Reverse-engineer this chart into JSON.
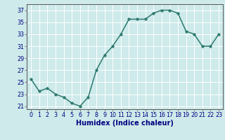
{
  "x": [
    0,
    1,
    2,
    3,
    4,
    5,
    6,
    7,
    8,
    9,
    10,
    11,
    12,
    13,
    14,
    15,
    16,
    17,
    18,
    19,
    20,
    21,
    22,
    23
  ],
  "y": [
    25.5,
    23.5,
    24.0,
    23.0,
    22.5,
    21.5,
    21.0,
    22.5,
    27.0,
    29.5,
    31.0,
    33.0,
    35.5,
    35.5,
    35.5,
    36.5,
    37.0,
    37.0,
    36.5,
    33.5,
    33.0,
    31.0,
    31.0,
    33.0
  ],
  "line_color": "#2d7a6e",
  "marker_color": "#2d7a6e",
  "bg_color": "#ceeaea",
  "grid_color": "#ffffff",
  "xlabel": "Humidex (Indice chaleur)",
  "xlim": [
    -0.5,
    23.5
  ],
  "ylim": [
    20.5,
    38.0
  ],
  "yticks": [
    21,
    23,
    25,
    27,
    29,
    31,
    33,
    35,
    37
  ],
  "xticks": [
    0,
    1,
    2,
    3,
    4,
    5,
    6,
    7,
    8,
    9,
    10,
    11,
    12,
    13,
    14,
    15,
    16,
    17,
    18,
    19,
    20,
    21,
    22,
    23
  ],
  "tick_fontsize": 5.8,
  "xlabel_fontsize": 7.0,
  "line_width": 1.1,
  "marker_size": 2.5,
  "spine_color": "#555555"
}
